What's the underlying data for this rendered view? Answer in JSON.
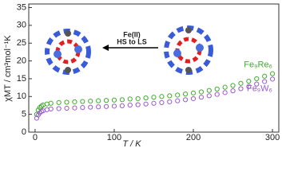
{
  "chart_data": {
    "type": "scatter",
    "xlabel": "T / K",
    "ylabel": "χMT / cm³mol⁻¹K",
    "annotations": [
      "Fe(II)",
      "HS to LS"
    ],
    "xlim": [
      -8,
      308
    ],
    "xticks": [
      0,
      100,
      200,
      300
    ],
    "ylim": [
      0,
      36
    ],
    "yticks": [
      0,
      5,
      10,
      15,
      20,
      25,
      30,
      35
    ],
    "x": [
      2,
      4,
      6,
      8,
      10,
      15,
      20,
      30,
      40,
      50,
      60,
      70,
      80,
      90,
      100,
      110,
      120,
      130,
      140,
      150,
      160,
      170,
      180,
      190,
      200,
      210,
      220,
      230,
      240,
      250,
      260,
      270,
      280,
      290,
      300
    ],
    "series": [
      {
        "name": "Fe₉Re₆",
        "color": "#3fae2a",
        "values": [
          5.0,
          6.2,
          6.9,
          7.3,
          7.6,
          7.9,
          8.1,
          8.3,
          8.4,
          8.5,
          8.6,
          8.7,
          8.8,
          8.9,
          9.0,
          9.1,
          9.3,
          9.4,
          9.6,
          9.8,
          10.0,
          10.2,
          10.4,
          10.7,
          11.0,
          11.3,
          11.7,
          12.1,
          12.6,
          13.1,
          13.7,
          14.3,
          15.0,
          15.7,
          16.4
        ]
      },
      {
        "name": "Fe₉W₆",
        "color": "#9b59d0",
        "values": [
          3.9,
          4.8,
          5.4,
          5.8,
          6.0,
          6.3,
          6.5,
          6.6,
          6.7,
          6.8,
          6.9,
          7.0,
          7.1,
          7.2,
          7.3,
          7.4,
          7.6,
          7.7,
          7.9,
          8.1,
          8.3,
          8.5,
          8.8,
          9.1,
          9.4,
          9.8,
          10.2,
          10.6,
          11.1,
          11.6,
          12.2,
          12.8,
          13.5,
          14.2,
          14.9
        ]
      }
    ]
  }
}
